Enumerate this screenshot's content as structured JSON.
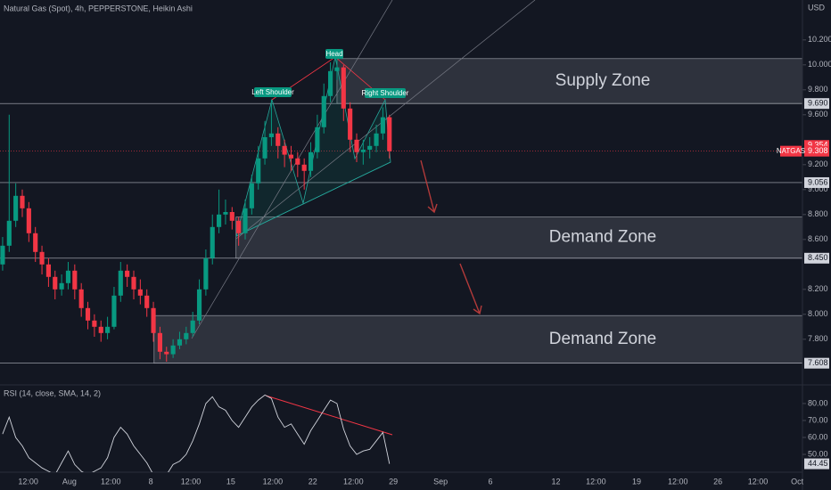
{
  "chart_data": {
    "type": "candlestick",
    "title": "Natural Gas (Spot), 4h, PEPPERSTONE, Heikin Ashi",
    "y_axis_label": "USD",
    "up_color": "#089981",
    "down_color": "#f23645",
    "ylim": [
      7.52,
      10.52
    ],
    "yticks": [
      {
        "value": 10.2,
        "label": "10.200"
      },
      {
        "value": 10.0,
        "label": "10.000"
      },
      {
        "value": 9.8,
        "label": "9.800"
      },
      {
        "value": 9.6,
        "label": "9.600"
      },
      {
        "value": 9.2,
        "label": "9.200"
      },
      {
        "value": 9.0,
        "label": "9.000"
      },
      {
        "value": 8.8,
        "label": "8.800"
      },
      {
        "value": 8.6,
        "label": "8.600"
      },
      {
        "value": 8.2,
        "label": "8.200"
      },
      {
        "value": 8.0,
        "label": "8.000"
      },
      {
        "value": 7.8,
        "label": "7.800"
      }
    ],
    "xlim": [
      -0.4,
      122.0
    ],
    "xticks": [
      {
        "value": 3.9,
        "label": "12:00"
      },
      {
        "value": 10.2,
        "label": "Aug"
      },
      {
        "value": 16.5,
        "label": "12:00"
      },
      {
        "value": 22.6,
        "label": "8"
      },
      {
        "value": 28.7,
        "label": "12:00"
      },
      {
        "value": 34.8,
        "label": "15"
      },
      {
        "value": 41.2,
        "label": "12:00"
      },
      {
        "value": 47.3,
        "label": "22"
      },
      {
        "value": 53.5,
        "label": "12:00"
      },
      {
        "value": 59.6,
        "label": "29"
      },
      {
        "value": 66.8,
        "label": "Sep"
      },
      {
        "value": 74.4,
        "label": "6"
      },
      {
        "value": 84.4,
        "label": "12"
      },
      {
        "value": 90.5,
        "label": "12:00"
      },
      {
        "value": 96.7,
        "label": "19"
      },
      {
        "value": 103.0,
        "label": "12:00"
      },
      {
        "value": 109.1,
        "label": "26"
      },
      {
        "value": 115.2,
        "label": "12:00"
      },
      {
        "value": 121.2,
        "label": "Oct"
      }
    ],
    "series": [
      {
        "name": "NATGAS",
        "open": [
          8.4,
          8.55,
          8.75,
          8.95,
          8.85,
          8.65,
          8.5,
          8.4,
          8.3,
          8.2,
          8.25,
          8.35,
          8.2,
          8.05,
          7.95,
          7.9,
          7.85,
          7.9,
          8.15,
          8.35,
          8.3,
          8.2,
          8.15,
          8.05,
          7.85,
          7.7,
          7.68,
          7.75,
          7.8,
          7.85,
          7.95,
          8.2,
          8.45,
          8.7,
          8.8,
          8.82,
          8.75,
          8.65,
          8.85,
          9.05,
          9.25,
          9.42,
          9.45,
          9.35,
          9.28,
          9.25,
          9.2,
          9.15,
          9.3,
          9.5,
          9.75,
          9.95,
          9.98,
          9.65,
          9.4,
          9.3,
          9.32,
          9.35,
          9.45,
          9.58
        ],
        "high": [
          8.62,
          9.6,
          9.05,
          9.0,
          8.9,
          8.7,
          8.55,
          8.45,
          8.35,
          8.32,
          8.42,
          8.4,
          8.25,
          8.1,
          8.0,
          7.95,
          7.98,
          8.22,
          8.42,
          8.4,
          8.35,
          8.28,
          8.2,
          8.1,
          7.9,
          7.74,
          7.8,
          7.86,
          7.9,
          8.02,
          8.28,
          8.52,
          8.8,
          9.0,
          8.92,
          8.86,
          8.78,
          8.92,
          9.12,
          9.35,
          9.55,
          9.72,
          9.5,
          9.4,
          9.35,
          9.3,
          9.25,
          9.38,
          9.6,
          9.85,
          10.02,
          10.05,
          10.0,
          9.7,
          9.45,
          9.4,
          9.42,
          9.52,
          9.66,
          9.6
        ],
        "low": [
          8.35,
          8.5,
          8.7,
          8.78,
          8.58,
          8.42,
          8.32,
          8.22,
          8.12,
          8.15,
          8.2,
          8.12,
          7.98,
          7.88,
          7.82,
          7.78,
          7.8,
          7.88,
          8.1,
          8.22,
          8.12,
          8.08,
          7.98,
          7.78,
          7.64,
          7.62,
          7.65,
          7.72,
          7.76,
          7.82,
          7.92,
          8.15,
          8.4,
          8.65,
          8.72,
          8.68,
          8.55,
          8.6,
          8.8,
          9.0,
          9.2,
          9.35,
          9.25,
          9.18,
          9.15,
          9.1,
          9.0,
          9.1,
          9.25,
          9.45,
          9.7,
          9.88,
          9.55,
          9.3,
          9.22,
          9.2,
          9.25,
          9.3,
          9.4,
          9.25
        ],
        "close": [
          8.55,
          8.75,
          8.95,
          8.85,
          8.65,
          8.5,
          8.4,
          8.3,
          8.2,
          8.25,
          8.35,
          8.2,
          8.05,
          7.95,
          7.9,
          7.85,
          7.9,
          8.15,
          8.35,
          8.3,
          8.2,
          8.15,
          8.05,
          7.85,
          7.7,
          7.68,
          7.75,
          7.8,
          7.85,
          7.95,
          8.2,
          8.45,
          8.7,
          8.8,
          8.82,
          8.75,
          8.65,
          8.85,
          9.05,
          9.25,
          9.42,
          9.45,
          9.35,
          9.28,
          9.25,
          9.2,
          9.15,
          9.3,
          9.5,
          9.75,
          9.95,
          9.98,
          9.65,
          9.4,
          9.3,
          9.32,
          9.35,
          9.45,
          9.58,
          9.308
        ]
      }
    ],
    "last_price": {
      "value": 9.308,
      "label": "9.308"
    },
    "price_marks": [
      {
        "value": 9.354,
        "label": "9.354"
      }
    ],
    "levels": [
      {
        "value": 9.69,
        "label": "9.690"
      },
      {
        "value": 9.056,
        "label": "9.056"
      },
      {
        "value": 8.45,
        "label": "8.450"
      },
      {
        "value": 7.608,
        "label": "7.608"
      }
    ],
    "zones": [
      {
        "label": "Supply Zone",
        "top": 10.05,
        "bottom": 9.69,
        "start": 51
      },
      {
        "label": "Demand Zone",
        "top": 8.78,
        "bottom": 8.45,
        "start": 35.6
      },
      {
        "label": "Demand Zone",
        "top": 7.99,
        "bottom": 7.608,
        "start": 23.1
      }
    ],
    "annotations": [
      "Left Shoulder",
      "Head",
      "Right Shoulder"
    ],
    "rsi": {
      "title": "RSI (14, close, SMA, 14, 2)",
      "color": "#d1d4dc",
      "ylim": [
        39.5,
        91.0
      ],
      "yticks": [
        {
          "value": 80,
          "label": "80.00"
        },
        {
          "value": 70,
          "label": "70.00"
        },
        {
          "value": 60,
          "label": "60.00"
        },
        {
          "value": 50,
          "label": "50.00"
        }
      ],
      "values": [
        62,
        72,
        60,
        55,
        48,
        45,
        42,
        40,
        38,
        45,
        52,
        44,
        40,
        38,
        40,
        42,
        48,
        60,
        66,
        62,
        55,
        50,
        45,
        38,
        34,
        38,
        44,
        46,
        50,
        58,
        68,
        80,
        84,
        78,
        76,
        70,
        66,
        72,
        78,
        82,
        85,
        83,
        72,
        66,
        68,
        62,
        56,
        64,
        70,
        76,
        82,
        80,
        65,
        55,
        50,
        52,
        53,
        58,
        63,
        44.45
      ],
      "last_label": "44.45"
    }
  }
}
